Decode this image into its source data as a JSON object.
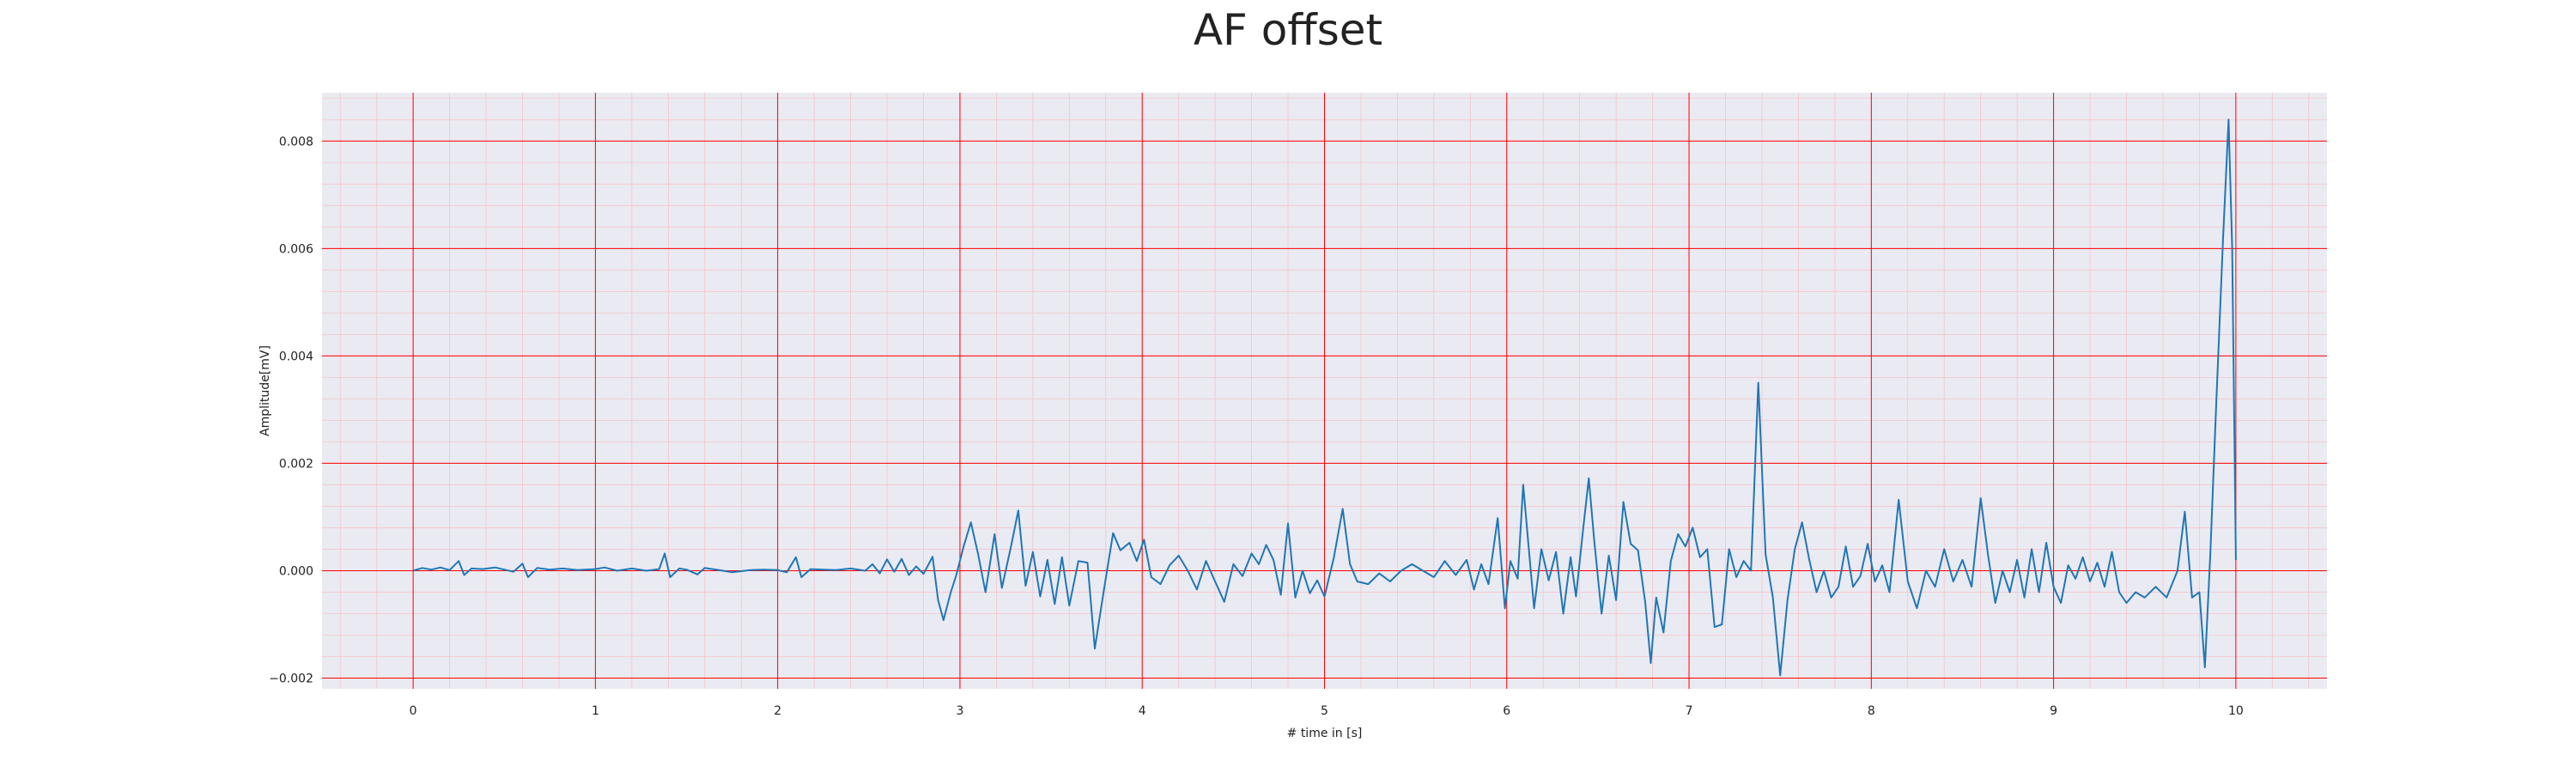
{
  "chart_data": {
    "type": "line",
    "title": "AF offset",
    "xlabel": "# time in [s]",
    "ylabel": "Amplitude[mV]",
    "xlim": [
      -0.5,
      10.5
    ],
    "ylim": [
      -0.0022,
      0.0089
    ],
    "x_ticks": [
      0,
      1,
      2,
      3,
      4,
      5,
      6,
      7,
      8,
      9,
      10
    ],
    "x_tick_labels": [
      "0",
      "1",
      "2",
      "3",
      "4",
      "5",
      "6",
      "7",
      "8",
      "9",
      "10"
    ],
    "y_ticks": [
      -0.002,
      0.0,
      0.002,
      0.004,
      0.006,
      0.008
    ],
    "y_tick_labels": [
      "−0.002",
      "0.000",
      "0.002",
      "0.004",
      "0.006",
      "0.008"
    ],
    "grid": {
      "major": true,
      "minor": true,
      "major_color": "#ff0000",
      "minor_color": "#ff9a9a"
    },
    "colors": {
      "background": "#eaeaf2",
      "line": "#1f77b4"
    },
    "series": [
      {
        "values": [
          [
            0.0,
            0.0
          ],
          [
            0.05,
            5e-05
          ],
          [
            0.1,
            2e-05
          ],
          [
            0.15,
            6e-05
          ],
          [
            0.2,
            1e-05
          ],
          [
            0.25,
            0.00018
          ],
          [
            0.28,
            -8e-05
          ],
          [
            0.32,
            4e-05
          ],
          [
            0.38,
            3e-05
          ],
          [
            0.45,
            6e-05
          ],
          [
            0.5,
            2e-05
          ],
          [
            0.55,
            -2e-05
          ],
          [
            0.6,
            0.00013
          ],
          [
            0.63,
            -0.00012
          ],
          [
            0.68,
            5e-05
          ],
          [
            0.75,
            2e-05
          ],
          [
            0.82,
            4e-05
          ],
          [
            0.9,
            1e-05
          ],
          [
            1.0,
            3e-05
          ],
          [
            1.05,
            6e-05
          ],
          [
            1.12,
            0.0
          ],
          [
            1.2,
            4e-05
          ],
          [
            1.28,
            0.0
          ],
          [
            1.35,
            3e-05
          ],
          [
            1.38,
            0.00032
          ],
          [
            1.41,
            -0.00012
          ],
          [
            1.46,
            4e-05
          ],
          [
            1.5,
            2e-05
          ],
          [
            1.56,
            -7e-05
          ],
          [
            1.6,
            5e-05
          ],
          [
            1.7,
            0.0
          ],
          [
            1.75,
            -3e-05
          ],
          [
            1.85,
            1e-05
          ],
          [
            1.92,
            2e-05
          ],
          [
            2.0,
            1e-05
          ],
          [
            2.05,
            -3e-05
          ],
          [
            2.1,
            0.00025
          ],
          [
            2.13,
            -0.00012
          ],
          [
            2.18,
            3e-05
          ],
          [
            2.25,
            2e-05
          ],
          [
            2.32,
            1e-05
          ],
          [
            2.4,
            4e-05
          ],
          [
            2.48,
            0.0
          ],
          [
            2.52,
            0.00012
          ],
          [
            2.56,
            -5e-05
          ],
          [
            2.6,
            0.00021
          ],
          [
            2.64,
            -2e-05
          ],
          [
            2.68,
            0.00022
          ],
          [
            2.72,
            -8e-05
          ],
          [
            2.76,
            8e-05
          ],
          [
            2.8,
            -6e-05
          ],
          [
            2.85,
            0.00026
          ],
          [
            2.88,
            -0.00055
          ],
          [
            2.91,
            -0.00092
          ],
          [
            2.95,
            -0.0004
          ],
          [
            2.98,
            -8e-05
          ],
          [
            3.02,
            0.00045
          ],
          [
            3.06,
            0.0009
          ],
          [
            3.1,
            0.0003
          ],
          [
            3.14,
            -0.0004
          ],
          [
            3.19,
            0.00068
          ],
          [
            3.23,
            -0.00032
          ],
          [
            3.28,
            0.00045
          ],
          [
            3.32,
            0.00112
          ],
          [
            3.36,
            -0.00028
          ],
          [
            3.4,
            0.00035
          ],
          [
            3.44,
            -0.00048
          ],
          [
            3.48,
            0.0002
          ],
          [
            3.52,
            -0.00062
          ],
          [
            3.56,
            0.00025
          ],
          [
            3.6,
            -0.00065
          ],
          [
            3.65,
            0.00018
          ],
          [
            3.7,
            0.00015
          ],
          [
            3.74,
            -0.00145
          ],
          [
            3.79,
            -0.00035
          ],
          [
            3.84,
            0.0007
          ],
          [
            3.88,
            0.00038
          ],
          [
            3.93,
            0.00052
          ],
          [
            3.97,
            0.00018
          ],
          [
            4.01,
            0.00058
          ],
          [
            4.05,
            -0.00012
          ],
          [
            4.1,
            -0.00025
          ],
          [
            4.15,
            0.0001
          ],
          [
            4.2,
            0.00028
          ],
          [
            4.25,
            0.0
          ],
          [
            4.3,
            -0.00035
          ],
          [
            4.35,
            0.00018
          ],
          [
            4.4,
            -0.0002
          ],
          [
            4.45,
            -0.00058
          ],
          [
            4.5,
            0.00012
          ],
          [
            4.55,
            -0.0001
          ],
          [
            4.6,
            0.00032
          ],
          [
            4.64,
            0.00012
          ],
          [
            4.68,
            0.00048
          ],
          [
            4.72,
            0.0002
          ],
          [
            4.76,
            -0.00045
          ],
          [
            4.8,
            0.00088
          ],
          [
            4.84,
            -0.0005
          ],
          [
            4.88,
            0.0
          ],
          [
            4.92,
            -0.00042
          ],
          [
            4.96,
            -0.00018
          ],
          [
            5.0,
            -0.00048
          ],
          [
            5.05,
            0.00022
          ],
          [
            5.1,
            0.00115
          ],
          [
            5.14,
            0.00012
          ],
          [
            5.18,
            -0.0002
          ],
          [
            5.24,
            -0.00025
          ],
          [
            5.3,
            -5e-05
          ],
          [
            5.36,
            -0.0002
          ],
          [
            5.42,
            0.0
          ],
          [
            5.48,
            0.00012
          ],
          [
            5.54,
            0.0
          ],
          [
            5.6,
            -0.00012
          ],
          [
            5.66,
            0.00018
          ],
          [
            5.72,
            -8e-05
          ],
          [
            5.78,
            0.0002
          ],
          [
            5.82,
            -0.00035
          ],
          [
            5.86,
            0.00012
          ],
          [
            5.9,
            -0.00025
          ],
          [
            5.95,
            0.00098
          ],
          [
            5.99,
            -0.0007
          ],
          [
            6.02,
            0.00018
          ],
          [
            6.06,
            -0.00015
          ],
          [
            6.09,
            0.0016
          ],
          [
            6.12,
            0.00045
          ],
          [
            6.15,
            -0.0007
          ],
          [
            6.19,
            0.0004
          ],
          [
            6.23,
            -0.00018
          ],
          [
            6.27,
            0.00035
          ],
          [
            6.31,
            -0.0008
          ],
          [
            6.35,
            0.00025
          ],
          [
            6.38,
            -0.00048
          ],
          [
            6.42,
            0.0008
          ],
          [
            6.45,
            0.00172
          ],
          [
            6.48,
            0.00055
          ],
          [
            6.52,
            -0.0008
          ],
          [
            6.56,
            0.00028
          ],
          [
            6.6,
            -0.00055
          ],
          [
            6.64,
            0.00128
          ],
          [
            6.68,
            0.0005
          ],
          [
            6.72,
            0.00038
          ],
          [
            6.76,
            -0.0006
          ],
          [
            6.79,
            -0.00172
          ],
          [
            6.82,
            -0.0005
          ],
          [
            6.86,
            -0.00115
          ],
          [
            6.9,
            0.00018
          ],
          [
            6.94,
            0.00068
          ],
          [
            6.98,
            0.00045
          ],
          [
            7.02,
            0.0008
          ],
          [
            7.06,
            0.00025
          ],
          [
            7.1,
            0.0004
          ],
          [
            7.14,
            -0.00105
          ],
          [
            7.18,
            -0.001
          ],
          [
            7.22,
            0.0004
          ],
          [
            7.26,
            -0.00012
          ],
          [
            7.3,
            0.00018
          ],
          [
            7.34,
            0.0
          ],
          [
            7.38,
            0.0035
          ],
          [
            7.42,
            0.0003
          ],
          [
            7.46,
            -0.0005
          ],
          [
            7.5,
            -0.00195
          ],
          [
            7.54,
            -0.00055
          ],
          [
            7.58,
            0.0004
          ],
          [
            7.62,
            0.0009
          ],
          [
            7.66,
            0.0002
          ],
          [
            7.7,
            -0.0004
          ],
          [
            7.74,
            0.0
          ],
          [
            7.78,
            -0.0005
          ],
          [
            7.82,
            -0.0003
          ],
          [
            7.86,
            0.00045
          ],
          [
            7.9,
            -0.0003
          ],
          [
            7.94,
            -0.0001
          ],
          [
            7.98,
            0.0005
          ],
          [
            8.02,
            -0.0002
          ],
          [
            8.06,
            0.0001
          ],
          [
            8.1,
            -0.0004
          ],
          [
            8.15,
            0.00132
          ],
          [
            8.2,
            -0.0002
          ],
          [
            8.25,
            -0.0007
          ],
          [
            8.3,
            0.0
          ],
          [
            8.35,
            -0.0003
          ],
          [
            8.4,
            0.0004
          ],
          [
            8.45,
            -0.0002
          ],
          [
            8.5,
            0.0002
          ],
          [
            8.55,
            -0.0003
          ],
          [
            8.6,
            0.00135
          ],
          [
            8.64,
            0.0003
          ],
          [
            8.68,
            -0.0006
          ],
          [
            8.72,
            0.0
          ],
          [
            8.76,
            -0.0004
          ],
          [
            8.8,
            0.0002
          ],
          [
            8.84,
            -0.0005
          ],
          [
            8.88,
            0.0004
          ],
          [
            8.92,
            -0.0004
          ],
          [
            8.96,
            0.00052
          ],
          [
            9.0,
            -0.0003
          ],
          [
            9.04,
            -0.0006
          ],
          [
            9.08,
            0.0001
          ],
          [
            9.12,
            -0.00015
          ],
          [
            9.16,
            0.00025
          ],
          [
            9.2,
            -0.0002
          ],
          [
            9.24,
            0.00015
          ],
          [
            9.28,
            -0.0003
          ],
          [
            9.32,
            0.00035
          ],
          [
            9.36,
            -0.0004
          ],
          [
            9.4,
            -0.0006
          ],
          [
            9.45,
            -0.0004
          ],
          [
            9.5,
            -0.0005
          ],
          [
            9.56,
            -0.0003
          ],
          [
            9.62,
            -0.0005
          ],
          [
            9.68,
            0.0
          ],
          [
            9.72,
            0.0011
          ],
          [
            9.76,
            -0.0005
          ],
          [
            9.8,
            -0.0004
          ],
          [
            9.83,
            -0.0018
          ],
          [
            9.86,
            0.0003
          ],
          [
            9.89,
            0.0029
          ],
          [
            9.93,
            0.0062
          ],
          [
            9.96,
            0.0084
          ],
          [
            9.98,
            0.006
          ],
          [
            10.0,
            0.0002
          ]
        ]
      }
    ]
  }
}
